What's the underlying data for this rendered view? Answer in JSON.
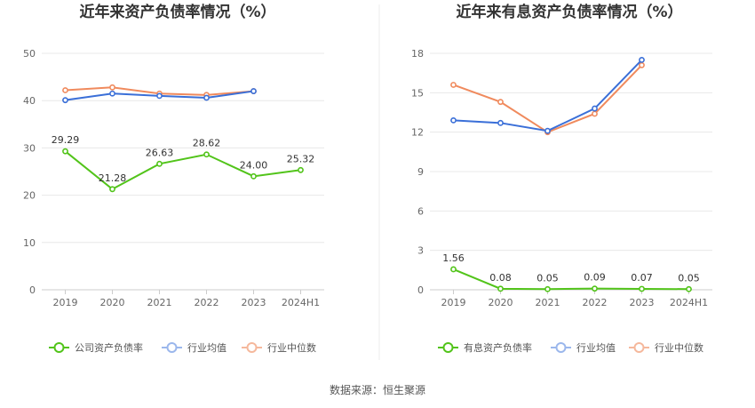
{
  "charts": [
    {
      "title": "近年来资产负债率情况（%）",
      "legend": [
        "公司资产负债率",
        "行业均值",
        "行业中位数"
      ]
    },
    {
      "title": "近年来有息资产负债率情况（%）",
      "legend": [
        "有息资产负债率",
        "行业均值",
        "行业中位数"
      ]
    }
  ],
  "source": "数据来源：恒生聚源",
  "chart_data": [
    {
      "type": "line",
      "title": "近年来资产负债率情况（%）",
      "categories": [
        "2019",
        "2020",
        "2021",
        "2022",
        "2023",
        "2024H1"
      ],
      "ylim": [
        0,
        50
      ],
      "yticks": [
        0,
        10,
        20,
        30,
        40,
        50
      ],
      "grid": true,
      "legend_position": "bottom",
      "series": [
        {
          "name": "公司资产负债率",
          "color": "#52c41a",
          "values": [
            29.29,
            21.28,
            26.63,
            28.62,
            24.0,
            25.32
          ],
          "labels": [
            "29.29",
            "21.28",
            "26.63",
            "28.62",
            "24.00",
            "25.32"
          ]
        },
        {
          "name": "行业均值",
          "color": "#3a6fd8",
          "values": [
            40.1,
            41.5,
            41.0,
            40.6,
            42.0,
            null
          ]
        },
        {
          "name": "行业中位数",
          "color": "#f08a5d",
          "values": [
            42.2,
            42.8,
            41.5,
            41.2,
            42.0,
            null
          ]
        }
      ]
    },
    {
      "type": "line",
      "title": "近年来有息资产负债率情况（%）",
      "categories": [
        "2019",
        "2020",
        "2021",
        "2022",
        "2023",
        "2024H1"
      ],
      "ylim": [
        0,
        18
      ],
      "yticks": [
        0,
        3,
        6,
        9,
        12,
        15,
        18
      ],
      "grid": true,
      "legend_position": "bottom",
      "series": [
        {
          "name": "有息资产负债率",
          "color": "#52c41a",
          "values": [
            1.56,
            0.08,
            0.05,
            0.09,
            0.07,
            0.05
          ],
          "labels": [
            "1.56",
            "0.08",
            "0.05",
            "0.09",
            "0.07",
            "0.05"
          ]
        },
        {
          "name": "行业均值",
          "color": "#3a6fd8",
          "values": [
            12.9,
            12.7,
            12.1,
            13.8,
            17.5,
            null
          ]
        },
        {
          "name": "行业中位数",
          "color": "#f08a5d",
          "values": [
            15.6,
            14.3,
            12.0,
            13.4,
            17.1,
            null
          ]
        }
      ]
    }
  ]
}
